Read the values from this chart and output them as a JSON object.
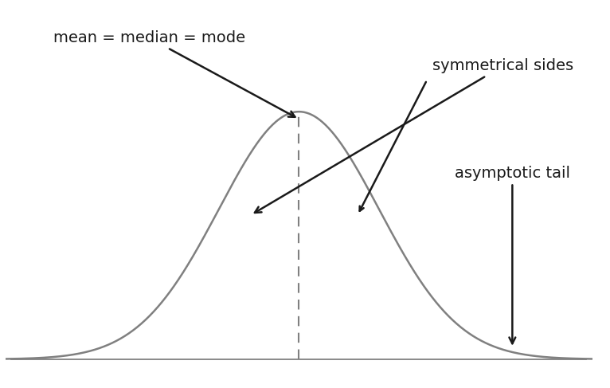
{
  "background_color": "#ffffff",
  "curve_color": "#808080",
  "curve_linewidth": 1.8,
  "dashed_line_color": "#808080",
  "arrow_color": "#1a1a1a",
  "baseline_color": "#808080",
  "mean_label": "mean = median = mode",
  "sym_label": "symmetrical sides",
  "asym_label": "asymptotic tail",
  "mean_fontsize": 14,
  "sym_fontsize": 14,
  "asym_fontsize": 14,
  "mu": 0.0,
  "sigma": 1.5,
  "x_min": -5.5,
  "x_max": 5.5,
  "y_min": -0.025,
  "y_max": 0.38
}
